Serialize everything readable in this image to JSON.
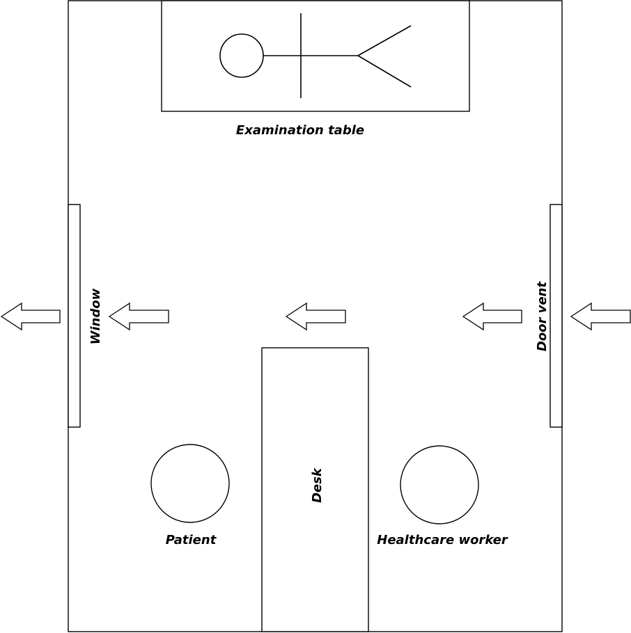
{
  "labels": {
    "examination_table": "Examination table",
    "window": "Window",
    "door_vent": "Door vent",
    "desk": "Desk",
    "patient": "Patient",
    "healthcare_worker": "Healthcare worker"
  },
  "airflow": {
    "direction": "right-to-left",
    "arrow_count": 5
  },
  "colors": {
    "stroke": "#000000",
    "fill": "#ffffff"
  }
}
